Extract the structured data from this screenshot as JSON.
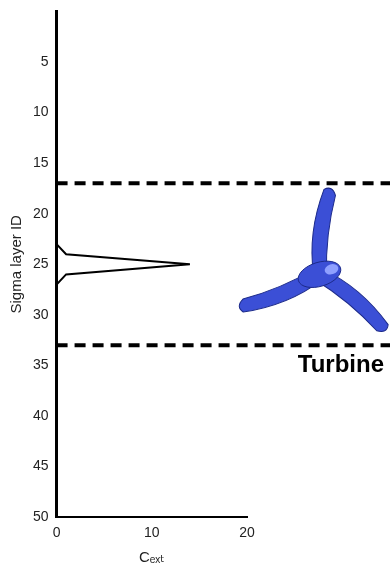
{
  "chart_data": {
    "type": "line",
    "x_label": "Cₑₓₜ",
    "y_label": "Sigma layer ID",
    "y": [
      1,
      2,
      3,
      4,
      5,
      6,
      7,
      8,
      9,
      10,
      11,
      12,
      13,
      14,
      15,
      16,
      17,
      18,
      19,
      20,
      21,
      22,
      23,
      24,
      25,
      26,
      27,
      28,
      29,
      30,
      31,
      32,
      33,
      34,
      35,
      36,
      37,
      38,
      39,
      40,
      41,
      42,
      43,
      44,
      45,
      46,
      47,
      48,
      49,
      50
    ],
    "x": [
      0,
      0,
      0,
      0,
      0,
      0,
      0,
      0,
      0,
      0,
      0,
      0,
      0,
      0,
      0,
      0,
      0,
      0,
      0,
      0,
      0,
      0,
      0,
      1,
      14,
      1,
      0,
      0,
      0,
      0,
      0,
      0,
      0,
      0,
      0,
      0,
      0,
      0,
      0,
      0,
      0,
      0,
      0,
      0,
      0,
      0,
      0,
      0,
      0,
      0
    ],
    "color": "#000000",
    "xlim": [
      0,
      20
    ],
    "ylim": [
      0,
      50
    ],
    "xticks": [
      0,
      10,
      20
    ],
    "yticks": [
      5,
      10,
      15,
      20,
      25,
      30,
      35,
      40,
      45,
      50
    ],
    "grid": false,
    "turbine": {
      "label": "Turbine",
      "layers": [
        17,
        33
      ],
      "line_style": "dashed"
    }
  }
}
